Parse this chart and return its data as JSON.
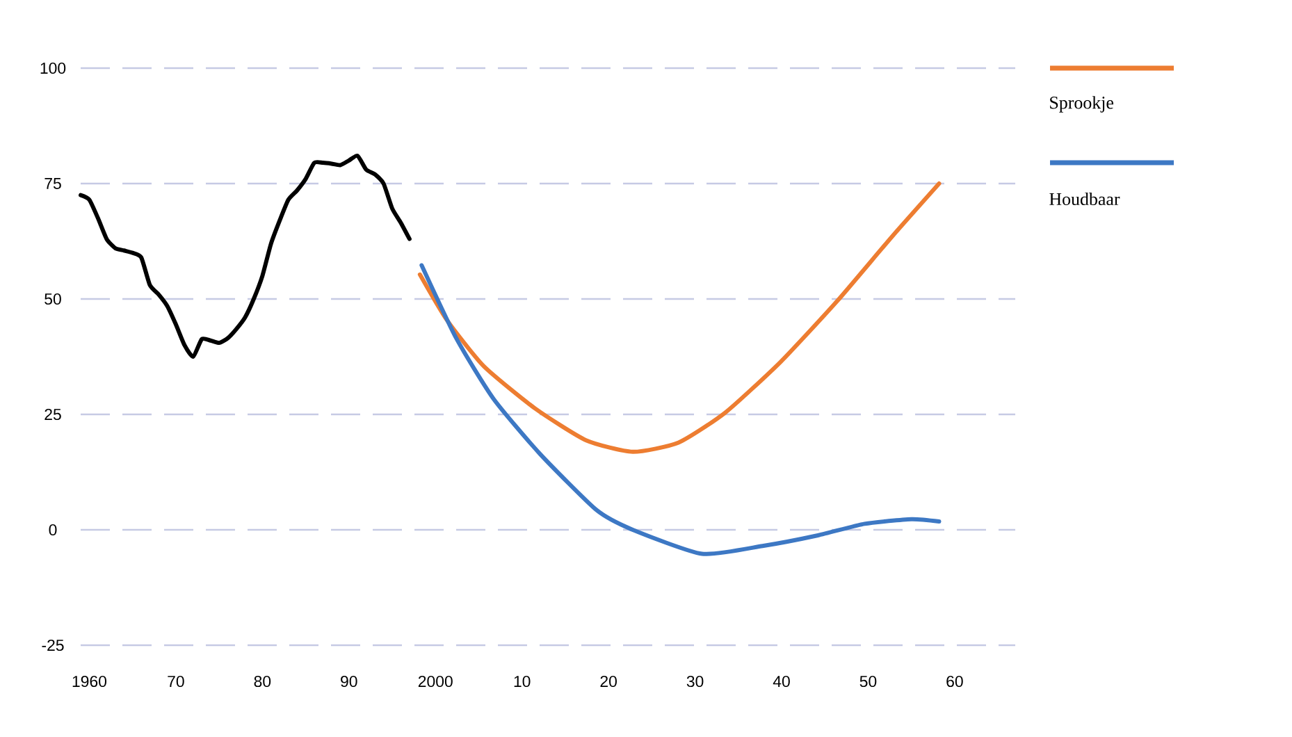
{
  "chart_data": {
    "type": "line",
    "xlim": [
      1959,
      2067
    ],
    "ylim": [
      -25,
      100
    ],
    "xticks": [
      1960,
      {
        "value": 1970,
        "label": "70"
      },
      {
        "value": 1980,
        "label": "80"
      },
      {
        "value": 1990,
        "label": "90"
      },
      2000,
      {
        "value": 2010,
        "label": "10"
      },
      {
        "value": 2020,
        "label": "20"
      },
      {
        "value": 2030,
        "label": "30"
      },
      {
        "value": 2040,
        "label": "40"
      },
      {
        "value": 2050,
        "label": "50"
      },
      {
        "value": 2060,
        "label": "60"
      }
    ],
    "yticks": [
      -25,
      0,
      25,
      50,
      75,
      100
    ],
    "grid": "y",
    "legend": "right",
    "series": [
      {
        "color": "#000000",
        "x": [
          1959,
          1960,
          1961,
          1962,
          1963,
          1964,
          1965,
          1966,
          1967,
          1968,
          1969,
          1970,
          1971,
          1972,
          1973,
          1974,
          1975,
          1976,
          1977,
          1978,
          1979,
          1980,
          1981,
          1982,
          1983,
          1984,
          1985,
          1986,
          1987,
          1988,
          1989,
          1990,
          1991,
          1992,
          1993,
          1994,
          1995,
          1996,
          1997
        ],
        "values": [
          72.5,
          71.5,
          67.5,
          63,
          61,
          60.5,
          60,
          59,
          53,
          51,
          48.5,
          44.5,
          40,
          37.5,
          41.3,
          41,
          40.5,
          41.5,
          43.5,
          46,
          50,
          55,
          62,
          67,
          71.5,
          73.5,
          76,
          79.5,
          79.5,
          79.3,
          79,
          80,
          81,
          78,
          77,
          75,
          69.6,
          66.5,
          63
        ]
      },
      {
        "name": "Sprookje",
        "color": "#ed7d31",
        "x": [
          1998.2,
          2001.3,
          2005.6,
          2011.5,
          2017.4,
          2022.8,
          2028.1,
          2033.5,
          2039.9,
          2046.4,
          2052.8,
          2058.2
        ],
        "values": [
          55.3,
          45.5,
          35.4,
          26.3,
          19.4,
          16.9,
          18.9,
          25.4,
          36.4,
          49.5,
          63.6,
          75
        ]
      },
      {
        "name": "Houdbaar",
        "color": "#3d78c4",
        "x": [
          1998.4,
          2002.4,
          2006.7,
          2012.1,
          2018.6,
          2022.8,
          2030.8,
          2037.8,
          2044.2,
          2049.6,
          2055,
          2058.2
        ],
        "values": [
          57.3,
          41.5,
          28.4,
          16.4,
          4.3,
          0,
          -5.2,
          -3.5,
          -1.2,
          1.3,
          2.3,
          1.8
        ]
      }
    ]
  }
}
